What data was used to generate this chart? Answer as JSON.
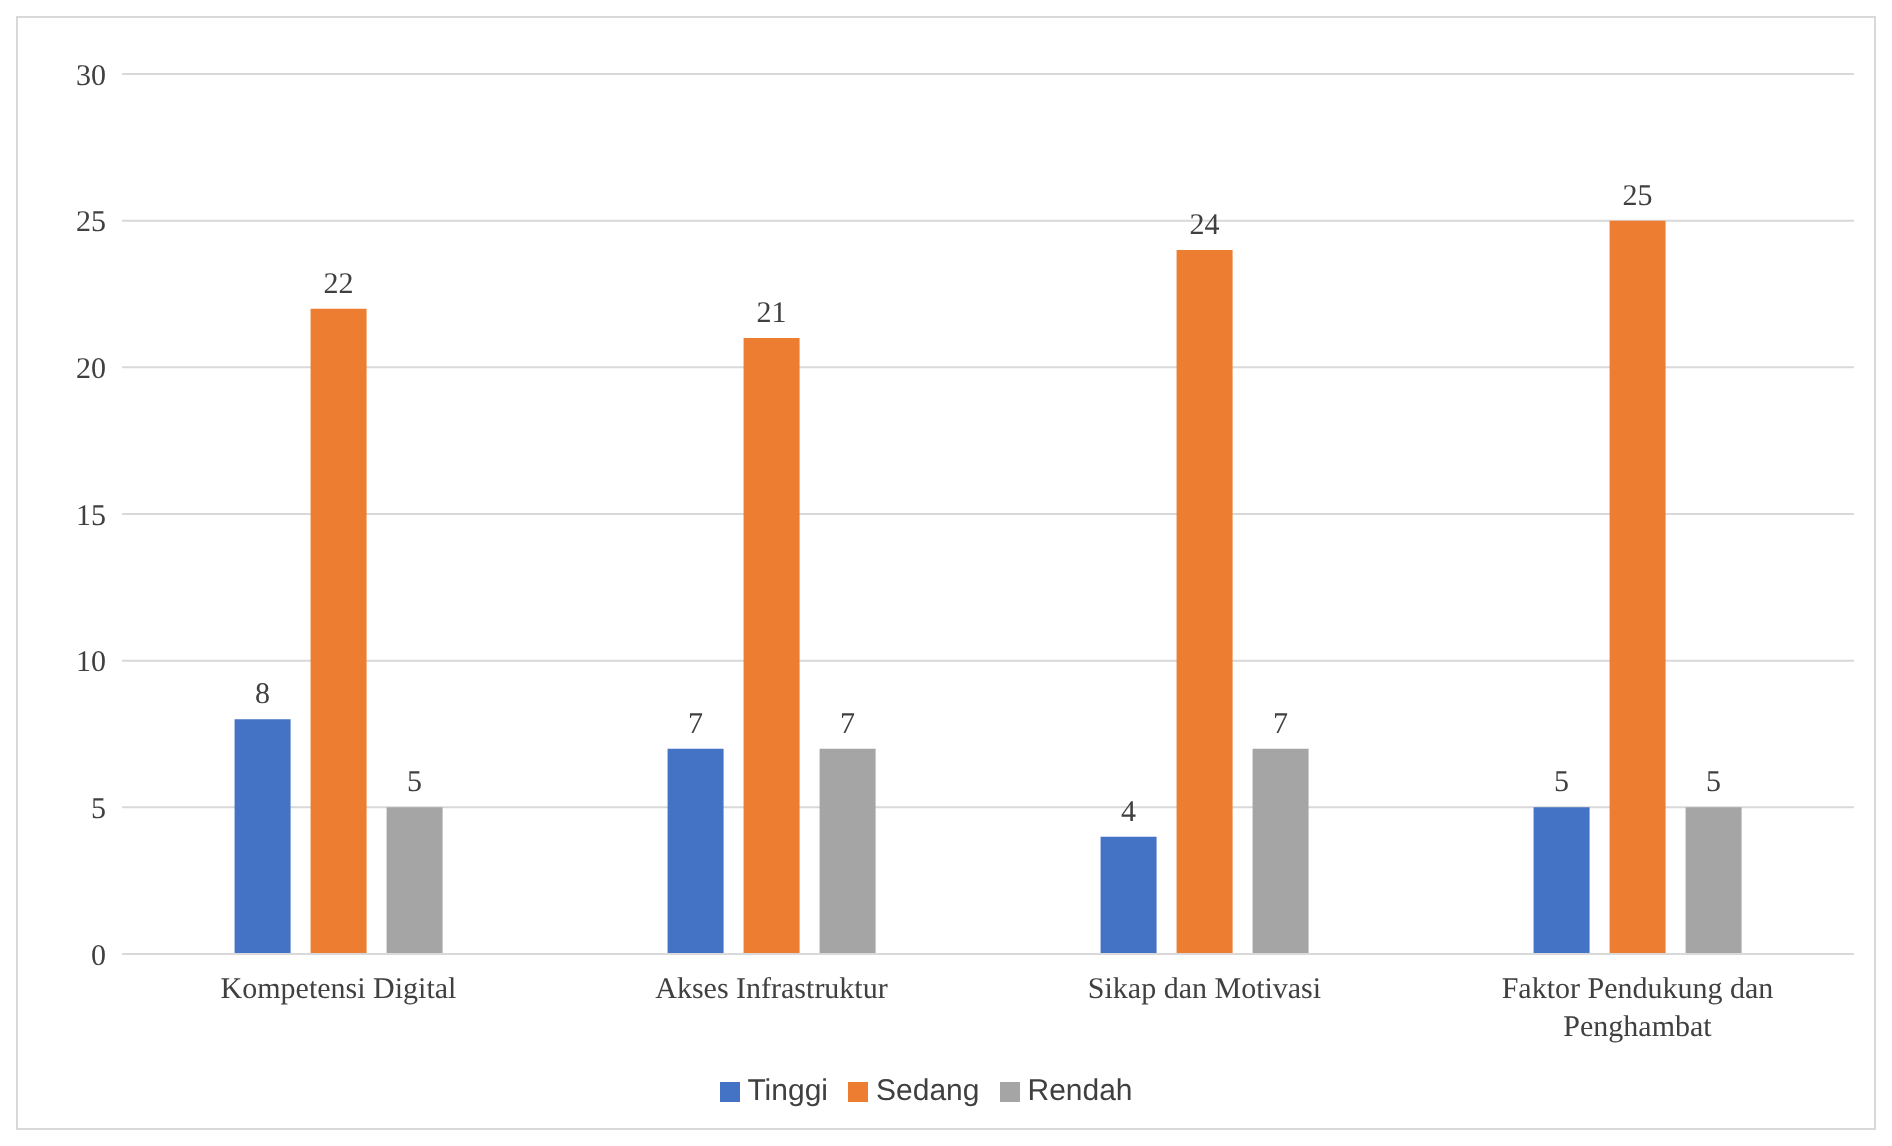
{
  "chart_data": {
    "type": "bar",
    "categories": [
      "Kompetensi Digital",
      "Akses Infrastruktur",
      "Sikap dan Motivasi",
      "Faktor Pendukung dan Penghambat"
    ],
    "series": [
      {
        "name": "Tinggi",
        "color": "#4472c4",
        "values": [
          8,
          7,
          4,
          5
        ]
      },
      {
        "name": "Sedang",
        "color": "#ed7d31",
        "values": [
          22,
          21,
          24,
          25
        ]
      },
      {
        "name": "Rendah",
        "color": "#a5a5a5",
        "values": [
          5,
          7,
          7,
          5
        ]
      }
    ],
    "ylim": [
      0,
      30
    ],
    "yticks": [
      0,
      5,
      10,
      15,
      20,
      25,
      30
    ],
    "grid": "y",
    "legend": "bottom",
    "data_labels": true
  }
}
